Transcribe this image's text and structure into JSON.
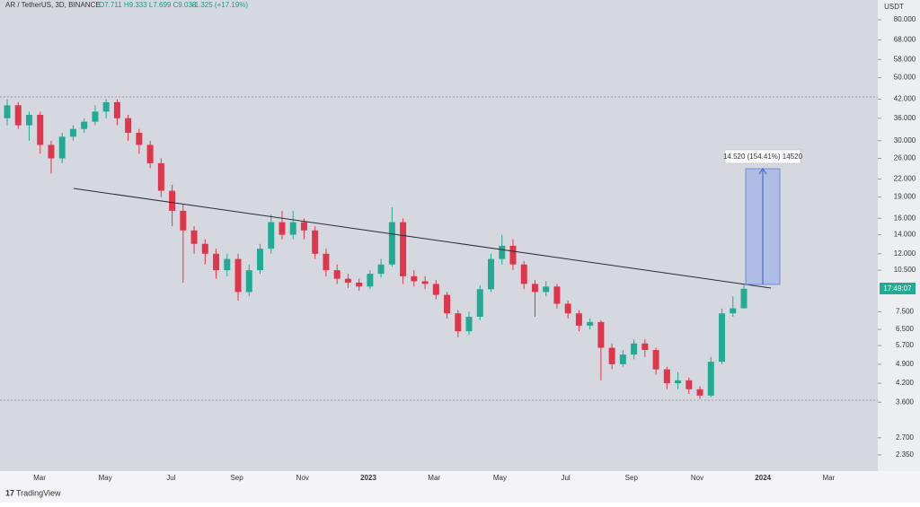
{
  "header": {
    "symbol": "AR / TetherUS, 3D, BINANCE",
    "ohlc": "O7.711 H9.333 L7.699 C9.033",
    "change": "+1.325 (+17.19%)"
  },
  "chart_data": {
    "type": "candlestick",
    "currency": "USDT",
    "log_scale": true,
    "ylim": [
      2.06,
      93.9
    ],
    "yticks": [
      {
        "value": 80,
        "label": "80.000"
      },
      {
        "value": 68,
        "label": "68.000"
      },
      {
        "value": 58,
        "label": "58.000"
      },
      {
        "value": 50,
        "label": "50.000"
      },
      {
        "value": 42,
        "label": "42.000"
      },
      {
        "value": 36,
        "label": "36.000"
      },
      {
        "value": 30,
        "label": "30.000"
      },
      {
        "value": 26,
        "label": "26.000"
      },
      {
        "value": 22,
        "label": "22.000"
      },
      {
        "value": 19,
        "label": "19.000"
      },
      {
        "value": 16,
        "label": "16.000"
      },
      {
        "value": 14,
        "label": "14.000"
      },
      {
        "value": 12,
        "label": "12.000"
      },
      {
        "value": 10.5,
        "label": "10.500"
      },
      {
        "value": 7.5,
        "label": "7.500"
      },
      {
        "value": 6.5,
        "label": "6.500"
      },
      {
        "value": 5.7,
        "label": "5.700"
      },
      {
        "value": 4.9,
        "label": "4.900"
      },
      {
        "value": 4.2,
        "label": "4.200"
      },
      {
        "value": 3.6,
        "label": "3.600"
      },
      {
        "value": 2.7,
        "label": "2.700"
      },
      {
        "value": 2.35,
        "label": "2.350"
      }
    ],
    "xtick_labels": [
      "Mar",
      "May",
      "Jul",
      "Sep",
      "Nov",
      "2023",
      "Mar",
      "May",
      "Jul",
      "Sep",
      "Nov",
      "2024",
      "Mar"
    ],
    "up_color": "#22ab94",
    "down_color": "#e0364b",
    "open": [
      36,
      40,
      34,
      37,
      29,
      26,
      31,
      33,
      35,
      38,
      41,
      36,
      32,
      29,
      25,
      20,
      17,
      14.5,
      13,
      12,
      10.5,
      11.5,
      8.8,
      10.5,
      12.5,
      15.5,
      14,
      15.5,
      14.5,
      12,
      10.5,
      9.8,
      9.5,
      9.2,
      10.2,
      11,
      15.5,
      10,
      9.6,
      9.4,
      8.6,
      7.4,
      6.4,
      7.2,
      9,
      11.5,
      12.8,
      11,
      9.4,
      8.8,
      9.2,
      8,
      7.4,
      6.7,
      6.9,
      5.6,
      4.9,
      5.3,
      5.8,
      5.5,
      4.7,
      4.2,
      4.3,
      4,
      3.8,
      5,
      7.4,
      7.711
    ],
    "high": [
      42,
      41,
      38,
      38,
      30,
      32,
      34,
      36,
      40,
      42,
      42,
      37,
      33,
      30,
      26,
      21,
      18,
      15,
      13.5,
      12.5,
      12,
      12,
      11,
      13,
      16.5,
      17,
      17,
      16,
      15,
      12.5,
      11,
      10.2,
      9.8,
      10.5,
      11.5,
      17.5,
      16,
      10.5,
      10,
      9.7,
      8.8,
      7.6,
      7.5,
      9.3,
      12,
      14,
      13.5,
      11.3,
      9.7,
      9.6,
      9.4,
      8.2,
      7.6,
      7.1,
      7,
      5.8,
      5.5,
      6,
      6,
      5.6,
      4.8,
      4.6,
      4.4,
      4.1,
      5.2,
      7.7,
      8.5,
      9.333
    ],
    "low": [
      34,
      33,
      30,
      27,
      23,
      25,
      30,
      32,
      34,
      36,
      34,
      30,
      27,
      24,
      19,
      15,
      9.5,
      12,
      11,
      9.8,
      10,
      8.2,
      8.5,
      10.2,
      12,
      13.5,
      13.5,
      13.5,
      11.5,
      10,
      9.4,
      9.1,
      8.9,
      9,
      9.9,
      10.8,
      9.4,
      9.2,
      9,
      8.3,
      7.1,
      6.1,
      6.2,
      7,
      8.8,
      11,
      10.5,
      9,
      7.2,
      8.5,
      7.7,
      7.1,
      6.4,
      6.5,
      4.3,
      4.7,
      4.8,
      5.1,
      5.2,
      4.5,
      4,
      4,
      3.85,
      3.7,
      3.75,
      4.9,
      7.2,
      7.699
    ],
    "close": [
      40,
      34,
      37,
      29,
      26,
      31,
      33,
      35,
      38,
      41,
      36,
      32,
      29,
      25,
      20,
      17,
      14.5,
      13,
      12,
      10.5,
      11.5,
      8.8,
      10.5,
      12.5,
      15.5,
      14,
      15.5,
      14.5,
      12,
      10.5,
      9.8,
      9.5,
      9.2,
      10.2,
      11,
      15.5,
      10,
      9.6,
      9.4,
      8.6,
      7.4,
      6.4,
      7.2,
      9,
      11.5,
      12.8,
      11,
      9.4,
      8.8,
      9.2,
      8,
      7.4,
      6.7,
      6.9,
      5.6,
      4.9,
      5.3,
      5.8,
      5.5,
      4.7,
      4.2,
      4.3,
      4,
      3.8,
      5,
      7.4,
      7.711,
      9.033
    ],
    "last_price_label": "17:49:07",
    "measure_label": "14.520 (154.41%) 14520"
  },
  "footer": {
    "brand": "TradingView"
  }
}
